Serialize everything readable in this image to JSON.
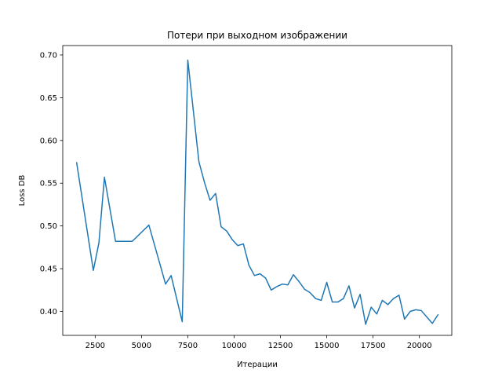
{
  "chart_data": {
    "type": "line",
    "title": "Потери при выходном изображении",
    "xlabel": "Итерации",
    "ylabel": "Loss DB",
    "xlim": [
      750,
      21750
    ],
    "ylim": [
      0.372,
      0.711
    ],
    "xticks": [
      2500,
      5000,
      7500,
      10000,
      12500,
      15000,
      17500,
      20000
    ],
    "xtick_labels": [
      "2500",
      "5000",
      "7500",
      "10000",
      "12500",
      "15000",
      "17500",
      "20000"
    ],
    "yticks": [
      0.4,
      0.45,
      0.5,
      0.55,
      0.6,
      0.65,
      0.7
    ],
    "ytick_labels": [
      "0.40",
      "0.45",
      "0.50",
      "0.55",
      "0.60",
      "0.65",
      "0.70"
    ],
    "grid": false,
    "color": "#1f77b4",
    "series": [
      {
        "x": [
          1500,
          2400,
          2700,
          3000,
          3600,
          4500,
          5400,
          6300,
          6600,
          7200,
          7500,
          8100,
          8400,
          8700,
          9000,
          9300,
          9600,
          9900,
          10200,
          10500,
          10800,
          11100,
          11400,
          11700,
          12000,
          12300,
          12600,
          12900,
          13200,
          13500,
          13800,
          14100,
          14400,
          14700,
          15000,
          15300,
          15600,
          15900,
          16200,
          16500,
          16800,
          17100,
          17400,
          17700,
          18000,
          18300,
          18600,
          18900,
          19200,
          19500,
          19800,
          20100,
          20700,
          21000
        ],
        "y": [
          0.574,
          0.448,
          0.48,
          0.557,
          0.482,
          0.482,
          0.501,
          0.432,
          0.442,
          0.388,
          0.694,
          0.575,
          0.551,
          0.53,
          0.538,
          0.499,
          0.494,
          0.484,
          0.477,
          0.479,
          0.454,
          0.442,
          0.444,
          0.439,
          0.425,
          0.429,
          0.432,
          0.431,
          0.443,
          0.435,
          0.426,
          0.422,
          0.415,
          0.413,
          0.434,
          0.411,
          0.411,
          0.415,
          0.43,
          0.404,
          0.42,
          0.385,
          0.405,
          0.397,
          0.413,
          0.408,
          0.415,
          0.419,
          0.391,
          0.4,
          0.402,
          0.401,
          0.386,
          0.396
        ]
      }
    ]
  }
}
